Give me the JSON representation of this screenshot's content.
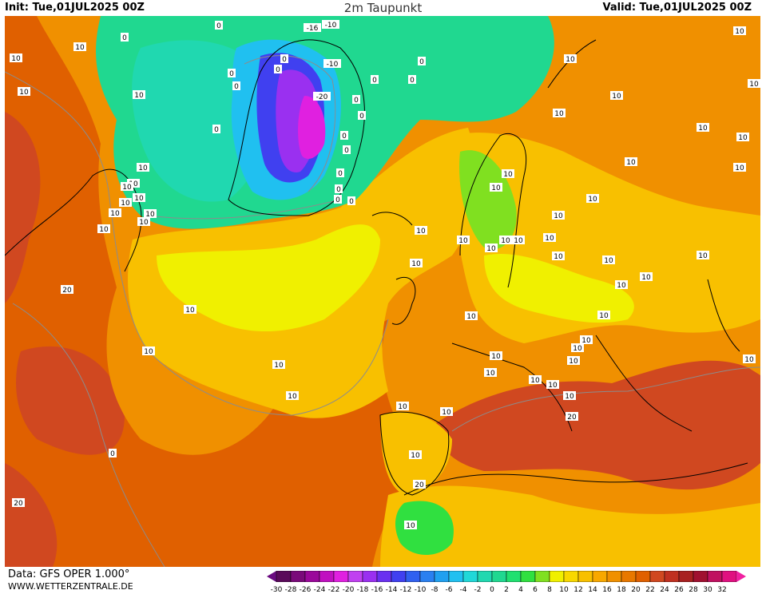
{
  "header": {
    "init": "Init: Tue,01JUL2025 00Z",
    "title": "2m Taupunkt",
    "valid": "Valid: Tue,01JUL2025 00Z"
  },
  "footer": {
    "data_source": "Data: GFS OPER 1.000°",
    "website": "WWW.WETTERZENTRALE.DE"
  },
  "colorbar": {
    "labels": [
      "-30",
      "-28",
      "-26",
      "-24",
      "-22",
      "-20",
      "-18",
      "-16",
      "-14",
      "-12",
      "-10",
      "-8",
      "-6",
      "-4",
      "-2",
      "0",
      "2",
      "4",
      "6",
      "8",
      "10",
      "12",
      "14",
      "16",
      "18",
      "20",
      "22",
      "24",
      "26",
      "28",
      "30",
      "32"
    ],
    "colors": [
      "#5a0a5a",
      "#7a0a7a",
      "#9a089a",
      "#c010c0",
      "#e020e0",
      "#c040f0",
      "#9a30f0",
      "#6a30f0",
      "#4040f0",
      "#3060f0",
      "#2a80f0",
      "#20a0f0",
      "#20c0f0",
      "#20d8d8",
      "#20d8b0",
      "#20d890",
      "#20e070",
      "#30e040",
      "#80e020",
      "#f0f000",
      "#f8d800",
      "#f8c000",
      "#f8a800",
      "#f09000",
      "#e87800",
      "#e06000",
      "#d04820",
      "#c03020",
      "#a82020",
      "#a01030",
      "#c01060",
      "#e01080"
    ],
    "accent_low": "#6a0a80",
    "accent_high": "#f020a0"
  },
  "map": {
    "ocean_color": "#e06000",
    "land_outline": "#000000",
    "contour_color": "#8c8c8c",
    "contour_labels": [
      {
        "value": "10"
      },
      {
        "value": "0"
      },
      {
        "value": "0"
      },
      {
        "value": "-16"
      },
      {
        "value": "-10"
      },
      {
        "value": "0"
      },
      {
        "value": "10"
      },
      {
        "value": "10"
      },
      {
        "value": "10"
      },
      {
        "value": "0"
      },
      {
        "value": "0"
      },
      {
        "value": "-10"
      },
      {
        "value": "0"
      },
      {
        "value": "0"
      },
      {
        "value": "0"
      },
      {
        "value": "10"
      },
      {
        "value": "10"
      },
      {
        "value": "0"
      },
      {
        "value": "0"
      },
      {
        "value": "-20"
      },
      {
        "value": "0"
      },
      {
        "value": "10"
      },
      {
        "value": "10"
      },
      {
        "value": "10"
      },
      {
        "value": "10"
      },
      {
        "value": "10"
      },
      {
        "value": "0"
      },
      {
        "value": "0"
      },
      {
        "value": "0"
      },
      {
        "value": "10"
      },
      {
        "value": "10"
      },
      {
        "value": "0"
      },
      {
        "value": "0"
      },
      {
        "value": "10"
      },
      {
        "value": "10"
      },
      {
        "value": "10"
      },
      {
        "value": "10"
      },
      {
        "value": "0"
      },
      {
        "value": "0"
      },
      {
        "value": "10"
      },
      {
        "value": "10"
      },
      {
        "value": "10"
      },
      {
        "value": "10"
      },
      {
        "value": "10"
      },
      {
        "value": "10"
      },
      {
        "value": "10"
      },
      {
        "value": "10"
      },
      {
        "value": "10"
      },
      {
        "value": "10"
      },
      {
        "value": "10"
      },
      {
        "value": "10"
      },
      {
        "value": "10"
      },
      {
        "value": "10"
      },
      {
        "value": "10"
      },
      {
        "value": "10"
      },
      {
        "value": "10"
      },
      {
        "value": "10"
      },
      {
        "value": "10"
      },
      {
        "value": "10"
      },
      {
        "value": "10"
      },
      {
        "value": "10"
      },
      {
        "value": "20"
      },
      {
        "value": "10"
      },
      {
        "value": "10"
      },
      {
        "value": "10"
      },
      {
        "value": "10"
      },
      {
        "value": "10"
      },
      {
        "value": "10"
      },
      {
        "value": "10"
      },
      {
        "value": "10"
      },
      {
        "value": "10"
      },
      {
        "value": "10"
      },
      {
        "value": "10"
      },
      {
        "value": "10"
      },
      {
        "value": "10"
      },
      {
        "value": "20"
      },
      {
        "value": "10"
      },
      {
        "value": "10"
      },
      {
        "value": "10"
      },
      {
        "value": "10"
      },
      {
        "value": "0"
      },
      {
        "value": "10"
      },
      {
        "value": "20"
      },
      {
        "value": "20"
      }
    ]
  }
}
